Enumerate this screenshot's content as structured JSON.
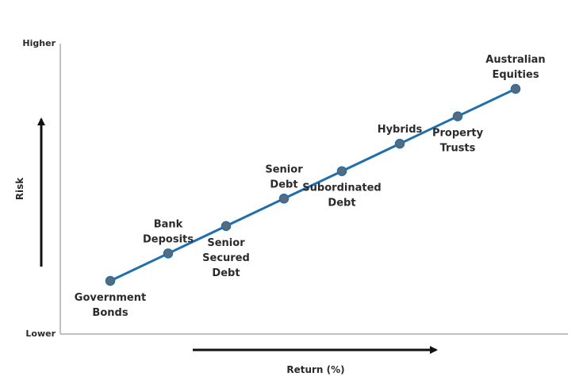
{
  "chart_data": {
    "type": "line",
    "title": "",
    "xlabel": "Return (%)",
    "ylabel": "Risk",
    "y_high_label": "Higher",
    "y_low_label": "Lower",
    "grid": false,
    "series": [
      {
        "color": "#1f6fae",
        "marker_color": "#5a6a78",
        "points": [
          {
            "x": 1,
            "y": 1,
            "label": [
              "Government",
              "Bonds"
            ],
            "label_pos": "below"
          },
          {
            "x": 2,
            "y": 2,
            "label": [
              "Bank",
              "Deposits"
            ],
            "label_pos": "above"
          },
          {
            "x": 3,
            "y": 3,
            "label": [
              "Senior",
              "Secured",
              "Debt"
            ],
            "label_pos": "below"
          },
          {
            "x": 4,
            "y": 4,
            "label": [
              "Senior",
              "Debt"
            ],
            "label_pos": "above"
          },
          {
            "x": 5,
            "y": 5,
            "label": [
              "Subordinated",
              "Debt"
            ],
            "label_pos": "below"
          },
          {
            "x": 6,
            "y": 6,
            "label": [
              "Hybrids"
            ],
            "label_pos": "above"
          },
          {
            "x": 7,
            "y": 7,
            "label": [
              "Property",
              "Trusts"
            ],
            "label_pos": "below"
          },
          {
            "x": 8,
            "y": 8,
            "label": [
              "Australian",
              "Equities"
            ],
            "label_pos": "above"
          }
        ]
      }
    ]
  }
}
